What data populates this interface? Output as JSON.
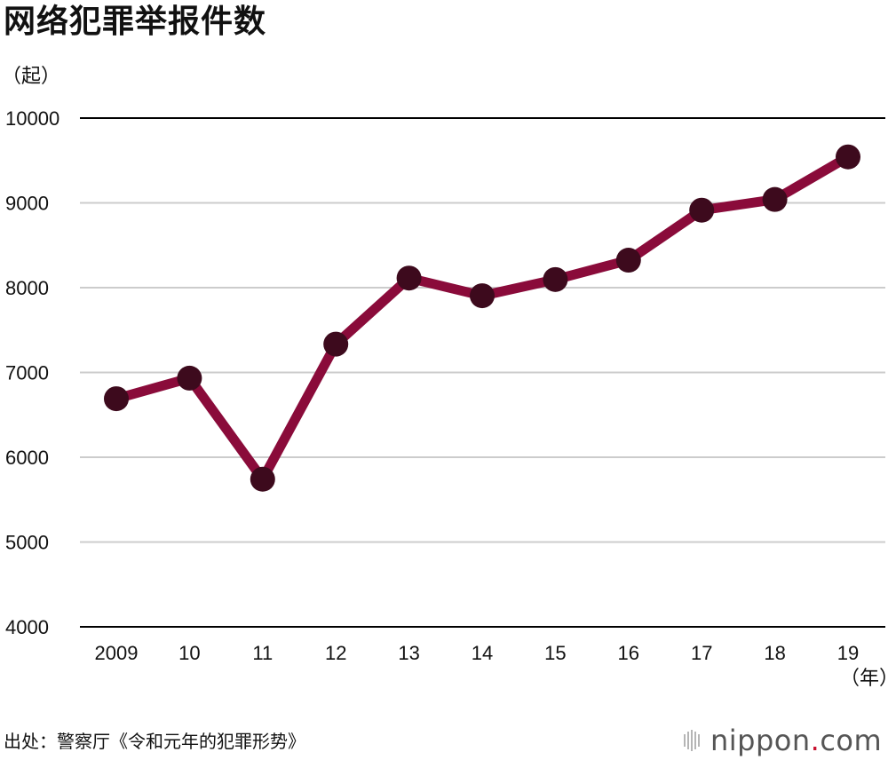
{
  "title": "网络犯罪举报件数",
  "unit_label": "（起）",
  "x_unit_label": "（年）",
  "source": "出处：警察厅《令和元年的犯罪形势》",
  "logo": {
    "name": "nippon",
    "dot": ".",
    "tld": "com",
    "dot_color": "#c8102e"
  },
  "colors": {
    "line": "#8a0b3a",
    "marker": "#3d0a1d",
    "grid": "#cccccc",
    "axis": "#000000"
  },
  "chart_data": {
    "type": "line",
    "title": "网络犯罪举报件数",
    "xlabel": "（年）",
    "ylabel": "（起）",
    "categories": [
      "2009",
      "10",
      "11",
      "12",
      "13",
      "14",
      "15",
      "16",
      "17",
      "18",
      "19"
    ],
    "values": [
      6690,
      6933,
      5741,
      7334,
      8113,
      7905,
      8096,
      8324,
      8914,
      9040,
      9542
    ],
    "ylim": [
      4000,
      10000
    ],
    "yticks": [
      10000,
      9000,
      8000,
      7000,
      6000,
      5000,
      4000
    ],
    "grid": true,
    "legend": "none"
  }
}
